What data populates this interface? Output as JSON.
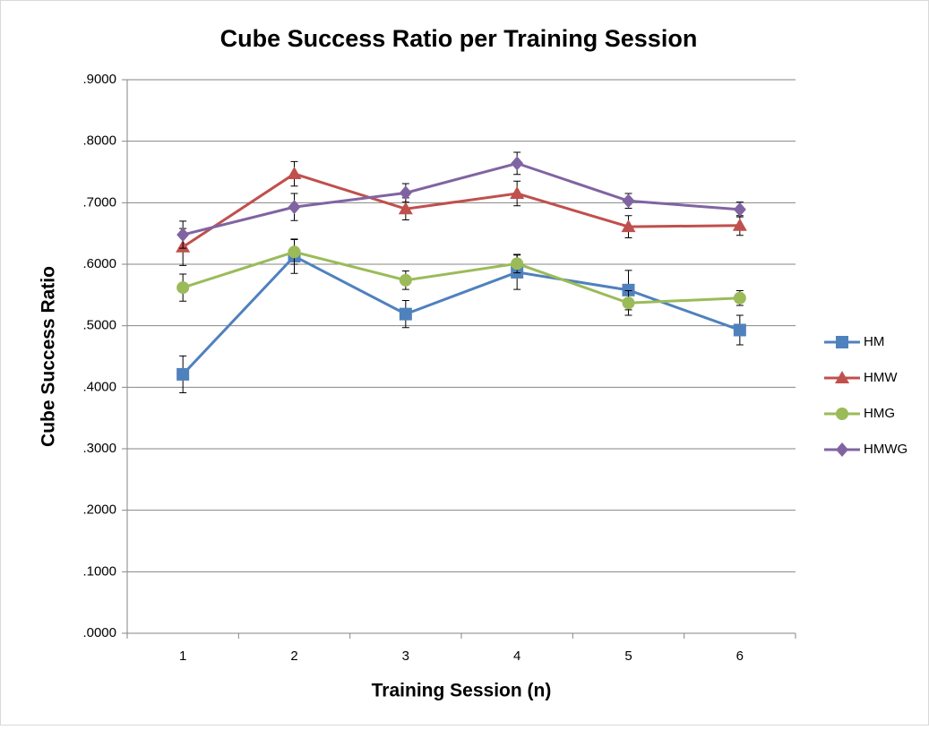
{
  "chart_data": {
    "type": "line",
    "title": "Cube Success Ratio per Training Session",
    "x_label": "Training Session (n)",
    "y_label": "Cube Success Ratio",
    "categories": [
      "1",
      "2",
      "3",
      "4",
      "5",
      "6"
    ],
    "ylim": [
      0,
      0.9
    ],
    "yticks": [
      {
        "value": 0,
        "label": ".0000"
      },
      {
        "value": 0.1,
        "label": ".1000"
      },
      {
        "value": 0.2,
        "label": ".2000"
      },
      {
        "value": 0.3,
        "label": ".3000"
      },
      {
        "value": 0.4,
        "label": ".4000"
      },
      {
        "value": 0.5,
        "label": ".5000"
      },
      {
        "value": 0.6,
        "label": ".6000"
      },
      {
        "value": 0.7,
        "label": ".7000"
      },
      {
        "value": 0.8,
        "label": ".8000"
      },
      {
        "value": 0.9,
        "label": ".9000"
      }
    ],
    "grid": true,
    "legend": "right",
    "series": [
      {
        "name": "HM",
        "color": "#4f81bd",
        "marker": "square",
        "values": [
          0.421,
          0.613,
          0.519,
          0.587,
          0.558,
          0.493
        ],
        "errors": [
          0.03,
          0.028,
          0.022,
          0.028,
          0.032,
          0.024
        ]
      },
      {
        "name": "HMW",
        "color": "#c0504d",
        "marker": "triangle",
        "values": [
          0.628,
          0.747,
          0.69,
          0.715,
          0.661,
          0.663
        ],
        "errors": [
          0.03,
          0.02,
          0.018,
          0.02,
          0.018,
          0.016
        ]
      },
      {
        "name": "HMG",
        "color": "#9bbb59",
        "marker": "circle",
        "values": [
          0.562,
          0.62,
          0.574,
          0.601,
          0.537,
          0.545
        ],
        "errors": [
          0.022,
          0.02,
          0.015,
          0.015,
          0.02,
          0.012
        ]
      },
      {
        "name": "HMWG",
        "color": "#8064a2",
        "marker": "diamond",
        "values": [
          0.648,
          0.693,
          0.716,
          0.764,
          0.703,
          0.689
        ],
        "errors": [
          0.022,
          0.022,
          0.015,
          0.018,
          0.012,
          0.012
        ]
      }
    ]
  }
}
